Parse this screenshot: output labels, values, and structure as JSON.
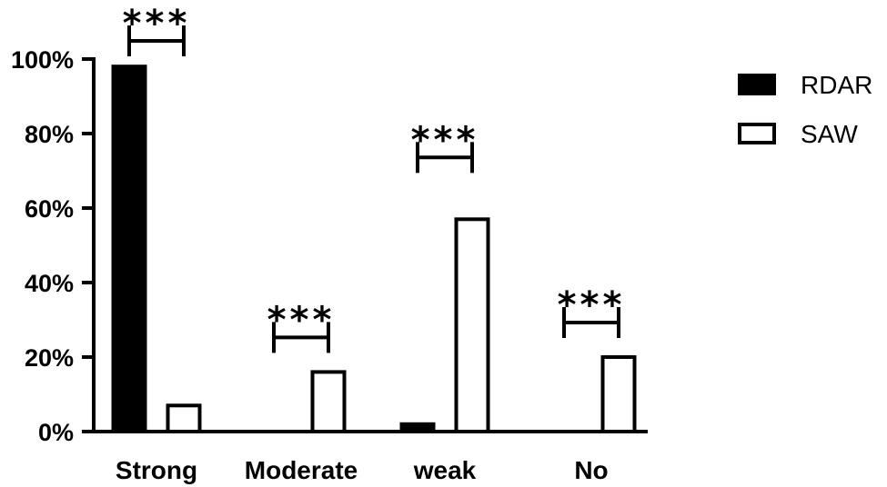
{
  "chart_data": {
    "type": "bar",
    "categories": [
      "Strong",
      "Moderate",
      "weak",
      "No"
    ],
    "series": [
      {
        "name": "RDAR",
        "values": [
          98,
          0,
          2,
          0
        ],
        "fill": "#000000"
      },
      {
        "name": "SAW",
        "values": [
          7,
          16,
          57,
          20
        ],
        "fill": "#ffffff"
      }
    ],
    "ylim": [
      0,
      100
    ],
    "yticks": [
      "0%",
      "20%",
      "40%",
      "60%",
      "80%",
      "100%"
    ],
    "ytick_values": [
      0,
      20,
      40,
      60,
      80,
      100
    ],
    "significance": [
      "***",
      "***",
      "***",
      "***"
    ],
    "legend_position": "top-right",
    "grid": false
  },
  "colors": {
    "axis": "#000000",
    "rdar": "#000000",
    "saw": "#ffffff"
  }
}
